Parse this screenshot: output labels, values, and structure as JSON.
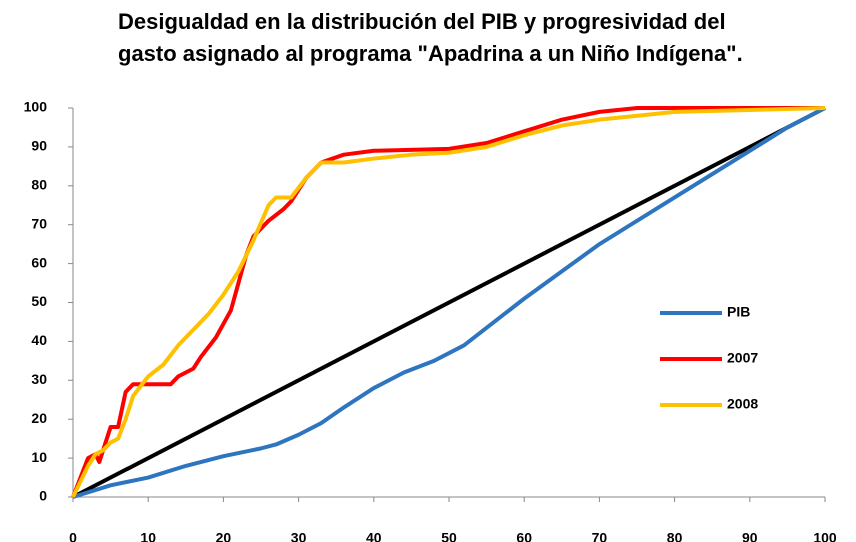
{
  "chart_data": {
    "type": "line",
    "title": "Desigualdad en la distribución del PIB y progresividad del gasto asignado al programa \"Apadrina a un Niño Indígena\".",
    "xlim": [
      0,
      100
    ],
    "xticks": [
      0,
      10,
      20,
      30,
      40,
      50,
      60,
      70,
      80,
      90,
      100
    ],
    "ylim": [
      0,
      100
    ],
    "yticks": [
      0,
      10,
      20,
      30,
      40,
      50,
      60,
      70,
      80,
      90,
      100
    ],
    "legend": "right",
    "series": [
      {
        "name": "PIB",
        "color": "#2e75c0",
        "x": [
          0,
          5,
          10,
          15,
          20,
          25,
          27,
          30,
          33,
          36,
          40,
          44,
          48,
          52,
          56,
          60,
          65,
          70,
          75,
          80,
          85,
          90,
          95,
          100
        ],
        "values": [
          0,
          3,
          5,
          8,
          10.5,
          12.5,
          13.5,
          16,
          19,
          23,
          28,
          32,
          35,
          39,
          45,
          51,
          58,
          65,
          71,
          77,
          83,
          89,
          95,
          100
        ]
      },
      {
        "name": "2007",
        "color": "#ff0000",
        "x": [
          0,
          1,
          2,
          3,
          3.5,
          4.5,
          5,
          6,
          7,
          8,
          10,
          12,
          13,
          14,
          15,
          16,
          17,
          19,
          21,
          22,
          23,
          24,
          26,
          28,
          29,
          31,
          33,
          36,
          40,
          50,
          55,
          60,
          65,
          70,
          75,
          100
        ],
        "values": [
          0,
          5,
          10,
          11,
          9,
          15,
          18,
          18,
          27,
          29,
          29,
          29,
          29,
          31,
          32,
          33,
          36,
          41,
          48,
          55,
          62,
          67,
          71,
          74,
          76,
          82,
          86,
          88,
          89,
          89.5,
          91,
          94,
          97,
          99,
          100,
          100
        ]
      },
      {
        "name": "2008",
        "color": "#ffc000",
        "x": [
          0,
          1,
          2,
          3,
          4,
          5,
          6,
          7,
          8,
          10,
          12,
          14,
          16,
          18,
          20,
          22,
          24,
          26,
          27,
          29,
          31,
          33,
          36,
          40,
          45,
          50,
          55,
          60,
          65,
          70,
          80,
          90,
          100
        ],
        "values": [
          0,
          4,
          8,
          11,
          12,
          14,
          15,
          20,
          26,
          31,
          34,
          39,
          43,
          47,
          52,
          58,
          66,
          75,
          77,
          77,
          82,
          86,
          86,
          87,
          88,
          88.5,
          90,
          93,
          95.5,
          97,
          99,
          99.5,
          100
        ]
      },
      {
        "color": "#000000",
        "x": [
          0,
          100
        ],
        "values": [
          0,
          100
        ]
      }
    ]
  }
}
